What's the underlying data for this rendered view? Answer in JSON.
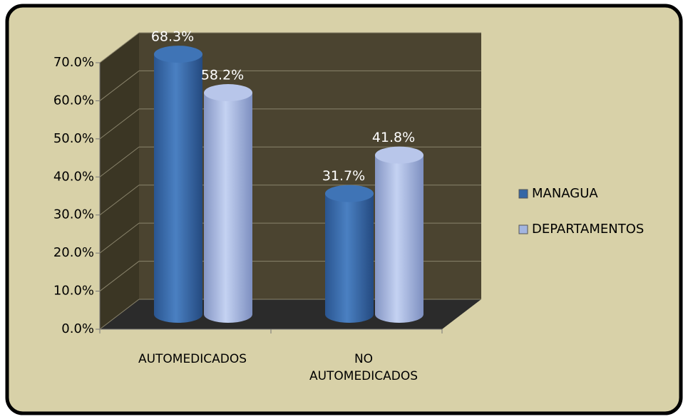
{
  "chart_data": {
    "type": "bar",
    "categories": [
      "AUTOMEDICADOS",
      "NO AUTOMEDICADOS"
    ],
    "series": [
      {
        "name": "MANAGUA",
        "color": "#3567a6",
        "values": [
          68.3,
          31.7
        ],
        "value_labels": [
          "68.3%",
          "31.7%"
        ]
      },
      {
        "name": "DEPARTAMENTOS",
        "color": "#a3b5e0",
        "values": [
          58.2,
          41.8
        ],
        "value_labels": [
          "58.2%",
          "41.8%"
        ]
      }
    ],
    "ylim": [
      0,
      70
    ],
    "yticks": [
      {
        "value": 0,
        "label": "0.0%"
      },
      {
        "value": 10,
        "label": "10.0%"
      },
      {
        "value": 20,
        "label": "20.0%"
      },
      {
        "value": 30,
        "label": "30.0%"
      },
      {
        "value": 40,
        "label": "40.0%"
      },
      {
        "value": 50,
        "label": "50.0%"
      },
      {
        "value": 60,
        "label": "60.0%"
      },
      {
        "value": 70,
        "label": "70.0%"
      }
    ],
    "grid": true,
    "legend": "right"
  }
}
